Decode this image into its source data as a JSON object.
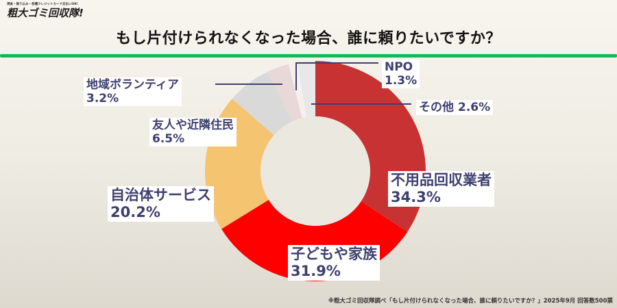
{
  "logo": {
    "tagline": "現金・振り込み・各種クレジットカード支払いOK!",
    "brand": "粗大ゴミ回収隊!"
  },
  "header": {
    "title": "もし片付けられなくなった場合、誰に頼りたいですか？"
  },
  "footnote": "※粗大ゴミ回収隊調べ「もし片付けられなくなった場合、誰に頼りたいですか？」2025年9月 回答数500票",
  "labels": {
    "vendor": {
      "name": "不用品回収業者",
      "pct": "34.3%"
    },
    "family": {
      "name": "子どもや家族",
      "pct": "31.9%"
    },
    "municipal": {
      "name": "自治体サービス",
      "pct": "20.2%"
    },
    "friends": {
      "name": "友人や近隣住民",
      "pct": "6.5%"
    },
    "volunteer": {
      "name": "地域ボランティア",
      "pct": "3.2%"
    },
    "npo": {
      "name": "NPO",
      "pct": "1.3%"
    },
    "other": {
      "name": "その他",
      "pct": "2.6%"
    }
  },
  "colors": {
    "accent_rule": "#14b85a",
    "label_text": "#3d3f6e"
  },
  "chart_data": {
    "type": "pie",
    "subtype": "donut",
    "title": "もし片付けられなくなった場合、誰に頼りたいですか？",
    "start_angle": "12 o'clock, clockwise",
    "categories": [
      "不用品回収業者",
      "子どもや家族",
      "自治体サービス",
      "友人や近隣住民",
      "地域ボランティア",
      "NPO",
      "その他"
    ],
    "values": [
      34.3,
      31.9,
      20.2,
      6.5,
      3.2,
      1.3,
      2.6
    ],
    "unit": "%",
    "colors": [
      "#C93232",
      "#FF0000",
      "#F5C470",
      "#D9D9D9",
      "#E8D8D8",
      "#F5F0EE",
      "#E8E8E8"
    ],
    "source": "※粗大ゴミ回収隊調べ 2025年9月 回答数500票",
    "legend": "none (direct labels)"
  }
}
